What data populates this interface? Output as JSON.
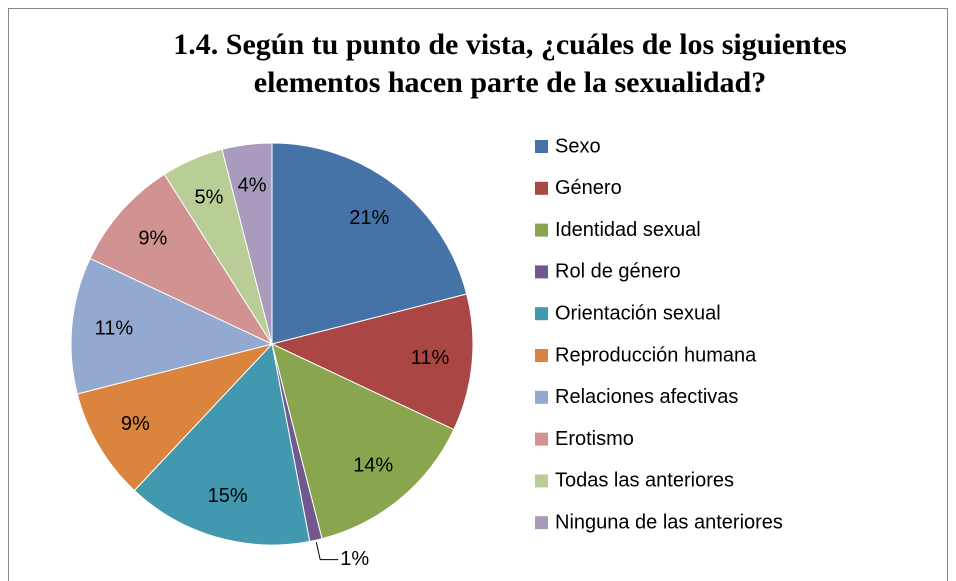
{
  "chart_data": {
    "type": "pie",
    "title": [
      "1.4. Según tu punto de vista, ¿cuáles de los siguientes",
      "elementos hacen parte de la sexualidad?"
    ],
    "categories": [
      "Sexo",
      "Género",
      "Identidad sexual",
      "Rol de género",
      "Orientación sexual",
      "Reproducción humana",
      "Relaciones afectivas",
      "Erotismo",
      "Todas las anteriores",
      "Ninguna de las anteriores"
    ],
    "values": [
      21,
      11,
      14,
      1,
      15,
      9,
      11,
      9,
      5,
      4
    ],
    "value_labels": [
      "21%",
      "11%",
      "14%",
      "1%",
      "15%",
      "9%",
      "11%",
      "9%",
      "5%",
      "4%"
    ],
    "colors": [
      "#4572a7",
      "#aa4643",
      "#89a54e",
      "#71588f",
      "#4198af",
      "#db843d",
      "#93a9cf",
      "#d19392",
      "#b9cd96",
      "#a99bbd"
    ],
    "legend": "right"
  }
}
